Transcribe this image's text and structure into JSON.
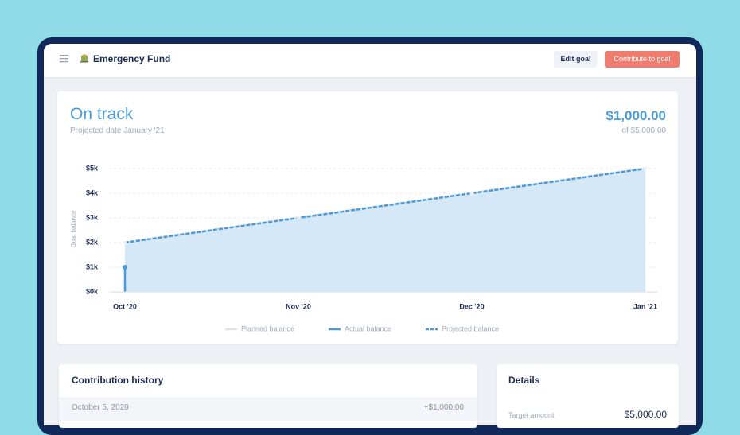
{
  "header": {
    "title": "Emergency Fund",
    "buttons": [
      "Edit goal",
      "Contribute to goal"
    ]
  },
  "goal": {
    "status": "On track",
    "projected_date": "Projected date January '21",
    "amount": "$1,000.00",
    "target": "of $5,000.00"
  },
  "chart_data": {
    "type": "area",
    "y_label": "Goal balance",
    "categories": [
      "Oct '20",
      "Nov '20",
      "Dec '20",
      "Jan '21"
    ],
    "series": [
      {
        "name": "Planned balance",
        "color": "#dfe3ea",
        "values": [
          2000,
          3000,
          4000,
          5000
        ]
      },
      {
        "name": "Actual balance",
        "color": "#4a9ad9",
        "values": [
          1000,
          null,
          null,
          null
        ]
      },
      {
        "name": "Projected balance",
        "color": "#4a9ad9",
        "dashed": true,
        "fill": "#d4e8f7",
        "values": [
          2000,
          3000,
          4000,
          5000
        ]
      }
    ],
    "ylim": [
      0,
      5000
    ],
    "yticks": [
      {
        "value": 0,
        "label": "$0k"
      },
      {
        "value": 1000,
        "label": "$1k"
      },
      {
        "value": 2000,
        "label": "$2k"
      },
      {
        "value": 3000,
        "label": "$3k"
      },
      {
        "value": 4000,
        "label": "$4k"
      },
      {
        "value": 5000,
        "label": "$5k"
      }
    ],
    "grid": true,
    "legend": "bottom"
  },
  "contribution_history": {
    "title": "Contribution history",
    "rows": [
      [
        "October 5, 2020",
        "+$1,000.00"
      ]
    ]
  },
  "details": {
    "title": "Details",
    "rows": [
      [
        "Target amount",
        "$5,000.00"
      ]
    ]
  }
}
